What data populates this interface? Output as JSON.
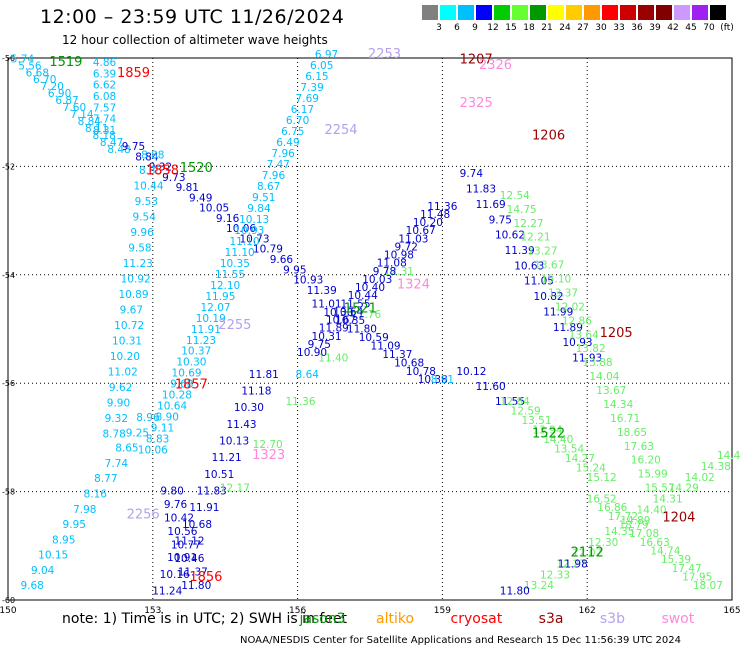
{
  "header": {
    "title": "12:00 – 23:59 UTC 11/26/2024",
    "subtitle": "12 hour collection of altimeter wave heights"
  },
  "colorbar": {
    "labels": [
      "3",
      "6",
      "9",
      "12",
      "15",
      "18",
      "21",
      "24",
      "27",
      "30",
      "33",
      "36",
      "39",
      "42",
      "45",
      "70",
      "(ft)"
    ],
    "colors": [
      "#808080",
      "#00ffff",
      "#00bfff",
      "#0000ff",
      "#00cc00",
      "#66ff33",
      "#009900",
      "#ffff00",
      "#ffcc00",
      "#ff9900",
      "#ff0000",
      "#cc0000",
      "#990000",
      "#800000",
      "#cc99ff",
      "#a020f0",
      "#000000"
    ]
  },
  "note": {
    "prefix": "note:  1) Time is in UTC;  2) SWH is in feet",
    "sat_jason3": "jason3",
    "sat_altika": "altiko",
    "sat_cryosat": "cryosat",
    "sat_s3a": "s3a",
    "sat_s3b": "s3b",
    "sat_swot": "swot",
    "colors": {
      "jason3": "#009900",
      "altika": "#ff9900",
      "cryosat": "#ff0000",
      "s3a": "#990000",
      "s3b": "#b4a0f0",
      "swot": "#ff88dd"
    }
  },
  "credit": "NOAA/NESDIS Center for Satellite Applications and Research    15 Dec 11:56:39 UTC 2024",
  "chart_data": {
    "type": "scatter",
    "title": "12 hour collection of altimeter wave heights",
    "xlabel": "",
    "ylabel": "",
    "xlim": [
      150,
      165
    ],
    "ylim": [
      -60,
      -50
    ],
    "x_ticks": [
      "150",
      "153",
      "156",
      "159",
      "162",
      "165"
    ],
    "y_ticks": [
      "-50",
      "-52",
      "-54",
      "-56",
      "-58",
      "-60"
    ],
    "grid": true,
    "colors": {
      "c3": "#00bfff",
      "c4": "#0000cc",
      "c5": "#66ee66",
      "c6": "#009900",
      "c_red": "#ff0000",
      "c_dark": "#990000",
      "c_lav": "#b4a0f0",
      "c_pink": "#ff88dd"
    },
    "tracks": [
      {
        "color": "c3",
        "start": [
          150.3,
          -50.08
        ],
        "end": [
          152.3,
          -51.75
        ],
        "values": [
          "5.74",
          "5.56",
          "6.68",
          "6.70",
          "7.20",
          "6.90",
          "6.87",
          "7.60",
          "7.14",
          "8.84",
          "8.11",
          "8.18",
          "8.47",
          "8.48"
        ]
      },
      {
        "color": "c3",
        "start": [
          152.0,
          -50.15
        ],
        "end": [
          152.0,
          -51.4
        ],
        "values": [
          "4.86",
          "6.39",
          "6.62",
          "6.08",
          "7.57",
          "7.74",
          "8.31"
        ]
      },
      {
        "color": "c4",
        "start": [
          152.6,
          -51.7
        ],
        "end": [
          156.5,
          -54.35
        ],
        "values": [
          "9.75",
          "8.84",
          "9.32",
          "9.73",
          "9.81",
          "9.49",
          "10.05",
          "9.16",
          "10.06",
          "10.73",
          "10.79",
          "9.66",
          "9.95",
          "10.93",
          "11.39"
        ]
      },
      {
        "color": "c3",
        "start": [
          153.0,
          -51.85
        ],
        "end": [
          152.2,
          -57.0
        ],
        "values": [
          "8.88",
          "8.35",
          "10.44",
          "9.53",
          "9.54",
          "9.96",
          "9.58",
          "11.23",
          "10.92",
          "10.89",
          "9.67",
          "10.72",
          "10.31",
          "10.20",
          "11.02",
          "9.62",
          "9.90",
          "9.32",
          "8.78"
        ]
      },
      {
        "color": "c3",
        "start": [
          156.6,
          -50.0
        ],
        "end": [
          153.0,
          -57.3
        ],
        "values": [
          "6.97",
          "6.05",
          "6.15",
          "7.39",
          "7.69",
          "6.17",
          "6.70",
          "6.75",
          "6.49",
          "7.96",
          "7.47",
          "7.96",
          "8.67",
          "9.51",
          "9.84",
          "10.13",
          "10.93",
          "11.10",
          "11.10",
          "10.35",
          "11.55",
          "12.10",
          "11.95",
          "12.07",
          "10.19",
          "11.91",
          "11.23",
          "10.37",
          "10.30",
          "10.69",
          "9.68",
          "10.28",
          "10.64",
          "8.90",
          "9.11",
          "8.83",
          "10.06"
        ]
      },
      {
        "color": "c3",
        "start": [
          152.9,
          -56.7
        ],
        "end": [
          150.5,
          -59.8
        ],
        "values": [
          "8.96",
          "9.25",
          "8.65",
          "7.74",
          "8.77",
          "8.16",
          "7.98",
          "9.95",
          "8.95",
          "10.15",
          "9.04",
          "9.68"
        ]
      },
      {
        "color": "c4",
        "start": [
          153.4,
          -58.05
        ],
        "end": [
          153.9,
          -59.8
        ],
        "values": [
          "9.80",
          "9.76",
          "10.42",
          "10.56",
          "10.77",
          "10.46",
          "11.37",
          "11.80"
        ]
      },
      {
        "color": "c4",
        "start": [
          155.3,
          -55.9
        ],
        "end": [
          153.3,
          -59.9
        ],
        "values": [
          "11.81",
          "11.18",
          "10.30",
          "11.43",
          "10.13",
          "11.21",
          "10.51",
          "11.83",
          "11.91",
          "10.68",
          "11.12",
          "10.91",
          "10.16",
          "11.24"
        ]
      },
      {
        "color": "c5",
        "start": [
          158.1,
          -54.0
        ],
        "end": [
          154.7,
          -58.0
        ],
        "values": [
          "12.31",
          "11.76",
          "11.40",
          "11.36",
          "12.70",
          "12.17"
        ]
      },
      {
        "color": "c4",
        "start": [
          156.6,
          -54.6
        ],
        "end": [
          158.8,
          -56.0
        ],
        "values": [
          "11.01",
          "10.30",
          "10.35",
          "11.80",
          "10.59",
          "11.09",
          "11.37",
          "10.68",
          "10.78",
          "10.38"
        ]
      },
      {
        "color": "c4",
        "start": [
          156.3,
          -55.5
        ],
        "end": [
          159.0,
          -52.8
        ],
        "values": [
          "10.90",
          "9.75",
          "10.31",
          "11.89",
          "10.67",
          "10.64",
          "11.55",
          "10.44",
          "10.40",
          "10.03",
          "9.78",
          "11.08",
          "10.98",
          "9.72",
          "11.03",
          "10.67",
          "10.20",
          "11.48",
          "11.36"
        ]
      },
      {
        "color": "c3",
        "start": [
          159.0,
          -56.0
        ],
        "end": [
          156.2,
          -55.9
        ],
        "values": [
          "8.91",
          "8.64"
        ]
      },
      {
        "color": "c4",
        "start": [
          159.6,
          -55.85
        ],
        "end": [
          160.4,
          -56.4
        ],
        "values": [
          "10.12",
          "11.60",
          "11.55"
        ]
      },
      {
        "color": "c4",
        "start": [
          159.6,
          -52.2
        ],
        "end": [
          162.0,
          -55.6
        ],
        "values": [
          "9.74",
          "11.83",
          "11.69",
          "9.75",
          "10.62",
          "11.39",
          "10.63",
          "11.05",
          "10.82",
          "11.99",
          "11.89",
          "10.93",
          "11.93"
        ]
      },
      {
        "color": "c5",
        "start": [
          160.5,
          -52.6
        ],
        "end": [
          163.5,
          -58.0
        ],
        "values": [
          "12.54",
          "14.75",
          "12.27",
          "12.21",
          "13.27",
          "13.67",
          "15.10",
          "13.37",
          "12.02",
          "12.86",
          "13.64",
          "13.82",
          "13.88",
          "14.04",
          "13.67",
          "14.34",
          "16.71",
          "18.65",
          "17.63",
          "16.20",
          "15.99",
          "15.57"
        ]
      },
      {
        "color": "c5",
        "start": [
          160.5,
          -56.4
        ],
        "end": [
          162.3,
          -57.8
        ],
        "values": [
          "12.84",
          "12.59",
          "13.51",
          "13.94",
          "14.40",
          "13.54",
          "14.27",
          "15.24",
          "15.12"
        ]
      },
      {
        "color": "c5",
        "start": [
          161.0,
          -59.8
        ],
        "end": [
          165.0,
          -57.4
        ],
        "values": [
          "13.24",
          "12.33",
          "12.27",
          "12.07",
          "12.30",
          "14.35",
          "14.89",
          "14.40",
          "14.31",
          "14.29",
          "14.02",
          "14.38",
          "14.42"
        ]
      },
      {
        "color": "c5",
        "start": [
          162.3,
          -58.2
        ],
        "end": [
          164.5,
          -59.8
        ],
        "values": [
          "16.52",
          "16.86",
          "17.72",
          "18.79",
          "17.08",
          "16.63",
          "14.74",
          "15.39",
          "17.47",
          "17.95",
          "18.07"
        ]
      },
      {
        "color": "c4",
        "start": [
          161.7,
          -59.4
        ],
        "end": [
          160.5,
          -59.9
        ],
        "values": [
          "11.98",
          "11.80"
        ]
      }
    ],
    "labels": [
      {
        "text": "1519",
        "color": "c6",
        "lon": 151.2,
        "lat": -50.15
      },
      {
        "text": "1859",
        "color": "c_red",
        "lon": 152.6,
        "lat": -50.35
      },
      {
        "text": "2253",
        "color": "c_lav",
        "lon": 157.8,
        "lat": -50.0
      },
      {
        "text": "1207",
        "color": "c_dark",
        "lon": 159.7,
        "lat": -50.1
      },
      {
        "text": "2326",
        "color": "c_pink",
        "lon": 160.1,
        "lat": -50.2
      },
      {
        "text": "2325",
        "color": "c_pink",
        "lon": 159.7,
        "lat": -50.9
      },
      {
        "text": "2254",
        "color": "c_lav",
        "lon": 156.9,
        "lat": -51.4
      },
      {
        "text": "1206",
        "color": "c_dark",
        "lon": 161.2,
        "lat": -51.5
      },
      {
        "text": "1858",
        "color": "c_red",
        "lon": 153.2,
        "lat": -52.15
      },
      {
        "text": "1520",
        "color": "c6",
        "lon": 153.9,
        "lat": -52.1
      },
      {
        "text": "1324",
        "color": "c_pink",
        "lon": 158.4,
        "lat": -54.25
      },
      {
        "text": "1521",
        "color": "c6",
        "lon": 157.3,
        "lat": -54.7
      },
      {
        "text": "2255",
        "color": "c_lav",
        "lon": 154.7,
        "lat": -55.0
      },
      {
        "text": "1205",
        "color": "c_dark",
        "lon": 162.6,
        "lat": -55.15
      },
      {
        "text": "1857",
        "color": "c_red",
        "lon": 153.8,
        "lat": -56.1
      },
      {
        "text": "1522",
        "color": "c6",
        "lon": 161.2,
        "lat": -57.0
      },
      {
        "text": "1323",
        "color": "c_pink",
        "lon": 155.4,
        "lat": -57.4
      },
      {
        "text": "2256",
        "color": "c_lav",
        "lon": 152.8,
        "lat": -58.5
      },
      {
        "text": "1204",
        "color": "c_dark",
        "lon": 163.9,
        "lat": -58.55
      },
      {
        "text": "2112",
        "color": "c6",
        "lon": 162.0,
        "lat": -59.2
      },
      {
        "text": "1856",
        "color": "c_red",
        "lon": 154.1,
        "lat": -59.65
      }
    ]
  }
}
